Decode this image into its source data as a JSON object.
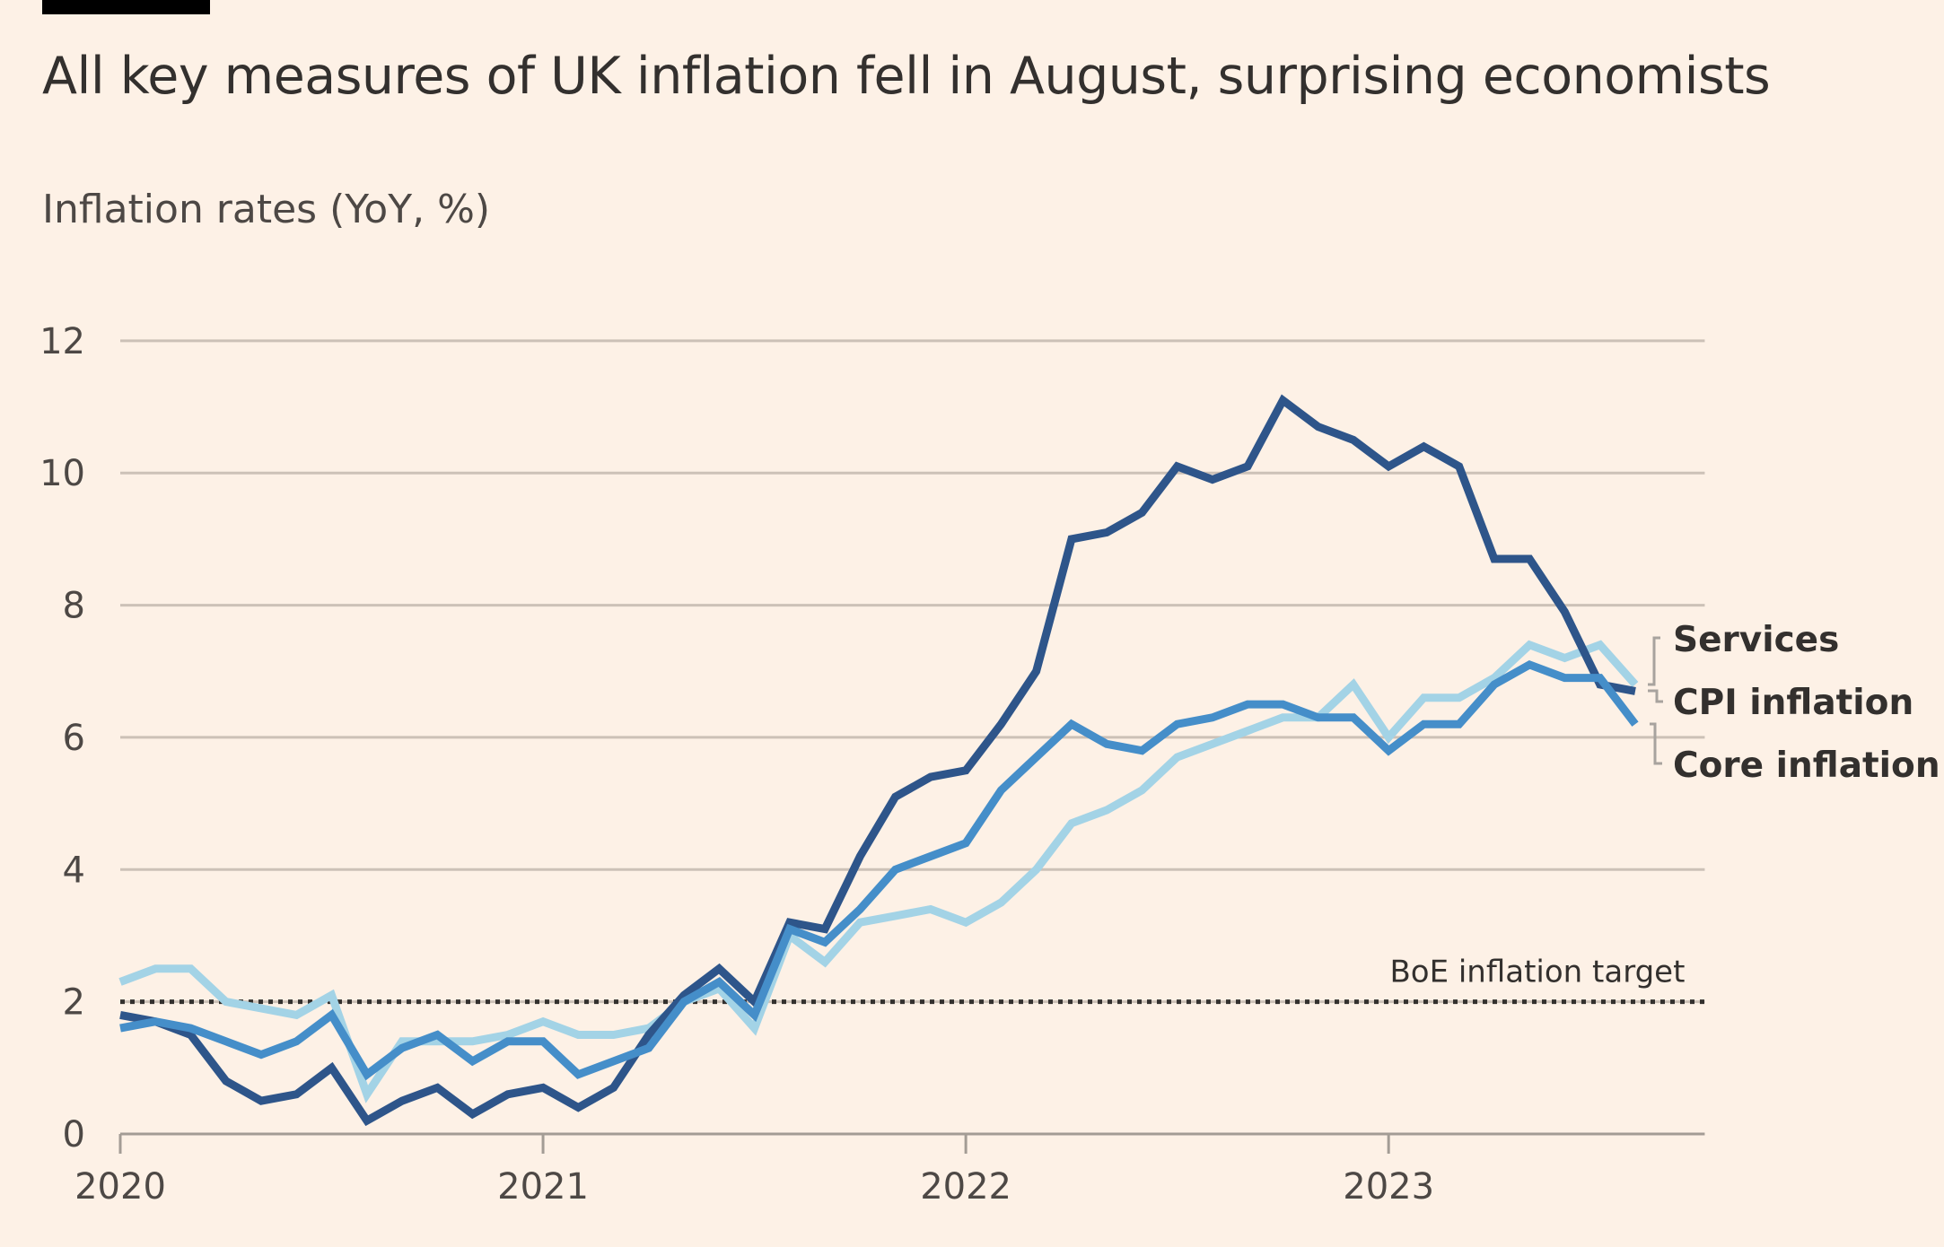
{
  "header": {
    "title": "All key measures of UK inflation fell in August, surprising economists",
    "subtitle": "Inflation rates (YoY, %)"
  },
  "chart_data": {
    "type": "line",
    "title": "All key measures of UK inflation fell in August, surprising economists",
    "ylabel": "Inflation rates (YoY, %)",
    "xlabel": "",
    "x_start": "2020-01",
    "x_frequency": "monthly",
    "x_tick_labels": [
      "2020",
      "2021",
      "2022",
      "2023"
    ],
    "y_ticks": [
      0,
      2,
      4,
      6,
      8,
      10,
      12
    ],
    "y_tick_labels": [
      "0",
      "2",
      "4",
      "6",
      "8",
      "10",
      "12"
    ],
    "ylim": [
      0,
      12
    ],
    "grid": true,
    "legend_placement": "right (direct labels at line ends)",
    "series": [
      {
        "name": "Services",
        "color": "#a3d3e6",
        "values": [
          2.3,
          2.5,
          2.5,
          2.0,
          1.9,
          1.8,
          2.1,
          0.6,
          1.4,
          1.4,
          1.4,
          1.5,
          1.7,
          1.5,
          1.5,
          1.6,
          2.0,
          2.2,
          1.6,
          3.0,
          2.6,
          3.2,
          3.3,
          3.4,
          3.2,
          3.5,
          4.0,
          4.7,
          4.9,
          5.2,
          5.7,
          5.9,
          6.1,
          6.3,
          6.3,
          6.8,
          6.0,
          6.6,
          6.6,
          6.9,
          7.4,
          7.2,
          7.4,
          6.8
        ]
      },
      {
        "name": "CPI inflation",
        "color": "#2e558a",
        "values": [
          1.8,
          1.7,
          1.5,
          0.8,
          0.5,
          0.6,
          1.0,
          0.2,
          0.5,
          0.7,
          0.3,
          0.6,
          0.7,
          0.4,
          0.7,
          1.5,
          2.1,
          2.5,
          2.0,
          3.2,
          3.1,
          4.2,
          5.1,
          5.4,
          5.5,
          6.2,
          7.0,
          9.0,
          9.1,
          9.4,
          10.1,
          9.9,
          10.1,
          11.1,
          10.7,
          10.5,
          10.1,
          10.4,
          10.1,
          8.7,
          8.7,
          7.9,
          6.8,
          6.7
        ]
      },
      {
        "name": "Core inflation",
        "color": "#458ec9",
        "values": [
          1.6,
          1.7,
          1.6,
          1.4,
          1.2,
          1.4,
          1.8,
          0.9,
          1.3,
          1.5,
          1.1,
          1.4,
          1.4,
          0.9,
          1.1,
          1.3,
          2.0,
          2.3,
          1.8,
          3.1,
          2.9,
          3.4,
          4.0,
          4.2,
          4.4,
          5.2,
          5.7,
          6.2,
          5.9,
          5.8,
          6.2,
          6.3,
          6.5,
          6.5,
          6.3,
          6.3,
          5.8,
          6.2,
          6.2,
          6.8,
          7.1,
          6.9,
          6.9,
          6.2
        ]
      }
    ],
    "annotations": [
      {
        "text": "BoE inflation target",
        "y": 2,
        "style": "dotted"
      }
    ]
  }
}
